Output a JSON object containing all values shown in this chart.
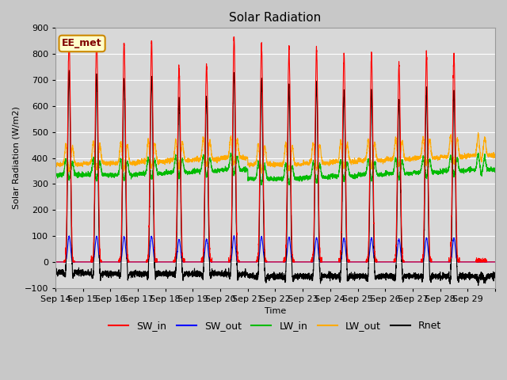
{
  "title": "Solar Radiation",
  "xlabel": "Time",
  "ylabel": "Solar Radiation (W/m2)",
  "annotation": "EE_met",
  "ylim": [
    -100,
    900
  ],
  "num_days": 16,
  "tick_labels": [
    "Sep 14",
    "Sep 15",
    "Sep 16",
    "Sep 17",
    "Sep 18",
    "Sep 19",
    "Sep 20",
    "Sep 21",
    "Sep 22",
    "Sep 23",
    "Sep 24",
    "Sep 25",
    "Sep 26",
    "Sep 27",
    "Sep 28",
    "Sep 29"
  ],
  "yticks": [
    -100,
    0,
    100,
    200,
    300,
    400,
    500,
    600,
    700,
    800,
    900
  ],
  "colors": {
    "SW_in": "#ff0000",
    "SW_out": "#0000ff",
    "LW_in": "#00bb00",
    "LW_out": "#ffaa00",
    "Rnet": "#000000"
  },
  "SW_in_peaks": [
    860,
    860,
    840,
    850,
    750,
    760,
    860,
    840,
    820,
    820,
    800,
    800,
    760,
    800,
    795,
    0
  ],
  "LW_in_base": [
    335,
    335,
    335,
    340,
    345,
    350,
    355,
    320,
    320,
    325,
    330,
    335,
    340,
    345,
    350,
    355
  ],
  "LW_out_base": [
    375,
    380,
    380,
    385,
    390,
    395,
    400,
    375,
    375,
    380,
    385,
    390,
    395,
    400,
    405,
    410
  ],
  "annotation_bg": "#ffffcc",
  "annotation_border": "#cc8800",
  "fig_bg": "#c8c8c8",
  "plot_bg": "#d8d8d8",
  "title_fontsize": 11,
  "label_fontsize": 8,
  "tick_fontsize": 8,
  "legend_fontsize": 9
}
